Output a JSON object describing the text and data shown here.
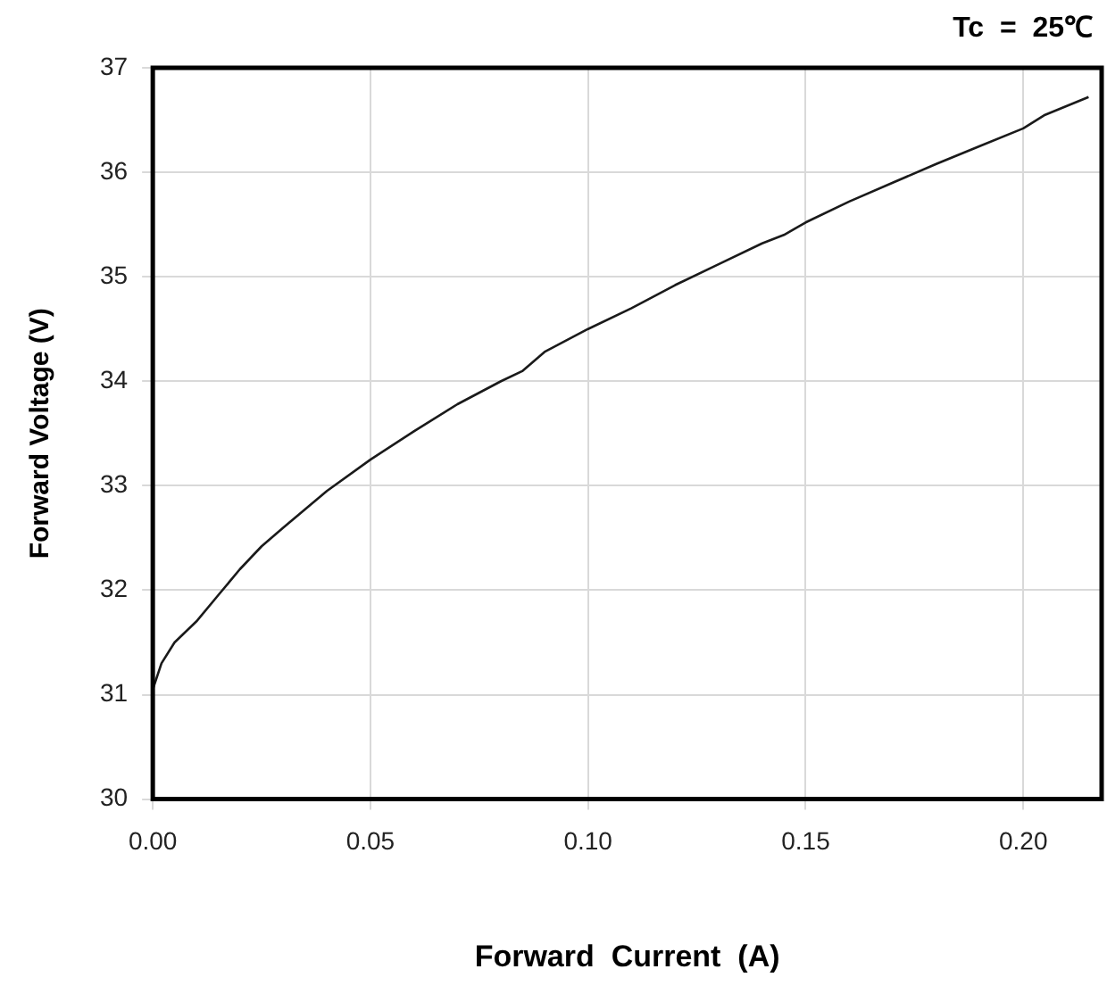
{
  "chart_data": {
    "type": "line",
    "xlabel": "Forward  Current  (A)",
    "ylabel": "Forward Voltage (V)",
    "annotations": [
      "Tc  =  25℃"
    ],
    "x": [
      0,
      0.002,
      0.005,
      0.01,
      0.015,
      0.02,
      0.025,
      0.03,
      0.04,
      0.05,
      0.06,
      0.07,
      0.08,
      0.085,
      0.09,
      0.1,
      0.11,
      0.12,
      0.13,
      0.14,
      0.145,
      0.15,
      0.16,
      0.17,
      0.18,
      0.19,
      0.2,
      0.205,
      0.215
    ],
    "series": [
      {
        "color": "#1a1a1a",
        "values": [
          31.05,
          31.3,
          31.5,
          31.7,
          31.95,
          32.2,
          32.42,
          32.6,
          32.95,
          33.25,
          33.52,
          33.78,
          34.0,
          34.1,
          34.28,
          34.5,
          34.7,
          34.92,
          35.12,
          35.32,
          35.4,
          35.52,
          35.72,
          35.9,
          36.08,
          36.25,
          36.42,
          36.55,
          36.72
        ]
      }
    ],
    "xlim": [
      0,
      0.218
    ],
    "xticks": [
      {
        "value": 0,
        "label": "0.00"
      },
      {
        "value": 0.05,
        "label": "0.05"
      },
      {
        "value": 0.1,
        "label": "0.10"
      },
      {
        "value": 0.15,
        "label": "0.15"
      },
      {
        "value": 0.2,
        "label": "0.20"
      }
    ],
    "ylim": [
      30,
      37
    ],
    "yticks": [
      30,
      31,
      32,
      33,
      34,
      35,
      36,
      37
    ],
    "grid": true,
    "legend": false,
    "marker": "none",
    "line_style": "solid"
  }
}
